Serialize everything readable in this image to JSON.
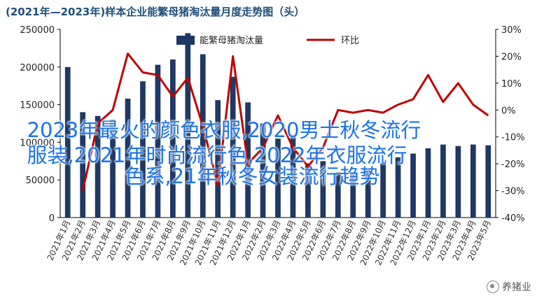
{
  "chart_data": {
    "type": "bar+line",
    "title": "(2021年—2023年)样本企业能繁母猪淘汰量月度走势图（头）",
    "categories": [
      "2021年1月",
      "2021年2月",
      "2021年3月",
      "2021年4月",
      "2021年5月",
      "2021年6月",
      "2021年7月",
      "2021年8月",
      "2021年9月",
      "2021年10月",
      "2021年11月",
      "2021年12月",
      "2022年1月",
      "2022年2月",
      "2022年3月",
      "2022年4月",
      "2022年5月",
      "2022年6月",
      "2022年7月",
      "2022年8月",
      "2022年9月",
      "2022年10月",
      "2022年11月",
      "2022年12月",
      "2023年1月",
      "2023年2月",
      "2023年3月",
      "2023年4月",
      "2023年5月"
    ],
    "series": [
      {
        "name": "能繁母猪淘汰量",
        "type": "bar",
        "axis": "left",
        "color": "#1f3864",
        "values": [
          200000,
          140000,
          135000,
          130000,
          158000,
          181000,
          203000,
          210000,
          245000,
          217000,
          156000,
          187000,
          153000,
          125000,
          105000,
          110000,
          72000,
          75000,
          60000,
          58000,
          64000,
          72000,
          80000,
          85000,
          92000,
          97000,
          95000,
          97000,
          96000
        ]
      },
      {
        "name": "环比",
        "type": "line",
        "axis": "right",
        "color": "#c00000",
        "values": [
          null,
          -30,
          -5,
          0,
          21,
          14,
          13,
          5,
          12,
          -6,
          -28,
          20,
          -20,
          -14,
          -2,
          -14,
          -21,
          -14,
          0,
          -1,
          0,
          -1,
          2,
          4,
          13,
          3,
          10,
          2,
          -2
        ]
      }
    ],
    "yleft": {
      "min": 0,
      "max": 250000,
      "ticks": [
        "0",
        "50000",
        "100000",
        "150000",
        "200000",
        "250000"
      ]
    },
    "yright": {
      "min": -40,
      "max": 30,
      "ticks": [
        "-40%",
        "-30%",
        "-20%",
        "-10%",
        "0%",
        "10%",
        "20%",
        "30%"
      ]
    },
    "legend_position": "top"
  },
  "overlay": {
    "line1": "2023年最火的颜色衣服,2020男士秋冬流行",
    "line2": "服装,2021年时尚流行色,2022年衣服流行",
    "line3": "色系,21年秋冬女装流行趋势"
  },
  "watermark": {
    "text": "养猪业",
    "icon": "wechat-icon"
  }
}
